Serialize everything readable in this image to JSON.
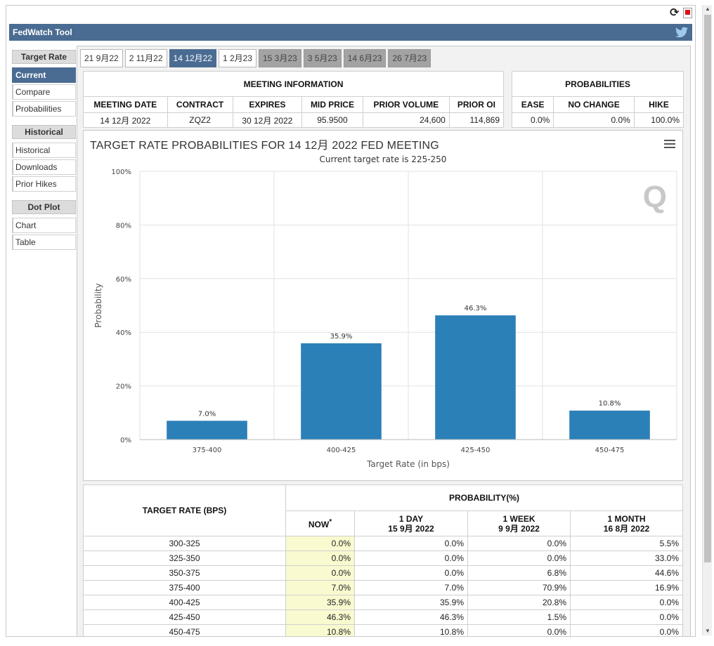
{
  "app": {
    "title": "FedWatch Tool"
  },
  "sidebar": {
    "sections": [
      {
        "heading": "Target Rate",
        "items": [
          "Current",
          "Compare",
          "Probabilities"
        ]
      },
      {
        "heading": "Historical",
        "items": [
          "Historical",
          "Downloads",
          "Prior Hikes"
        ]
      },
      {
        "heading": "Dot Plot",
        "items": [
          "Chart",
          "Table"
        ]
      }
    ],
    "active_item": "Current"
  },
  "tabs": [
    {
      "label": "21 9月22",
      "state": "normal"
    },
    {
      "label": "2 11月22",
      "state": "normal"
    },
    {
      "label": "14 12月22",
      "state": "active"
    },
    {
      "label": "1 2月23",
      "state": "normal"
    },
    {
      "label": "15 3月23",
      "state": "disabled"
    },
    {
      "label": "3 5月23",
      "state": "disabled"
    },
    {
      "label": "14 6月23",
      "state": "disabled"
    },
    {
      "label": "26 7月23",
      "state": "disabled"
    }
  ],
  "meeting_info": {
    "heading": "MEETING INFORMATION",
    "columns": [
      "MEETING DATE",
      "CONTRACT",
      "EXPIRES",
      "MID PRICE",
      "PRIOR VOLUME",
      "PRIOR OI"
    ],
    "values": [
      "14 12月 2022",
      "ZQZ2",
      "30 12月 2022",
      "95.9500",
      "24,600",
      "114,869"
    ]
  },
  "probabilities": {
    "heading": "PROBABILITIES",
    "columns": [
      "EASE",
      "NO CHANGE",
      "HIKE"
    ],
    "values": [
      "0.0%",
      "0.0%",
      "100.0%"
    ]
  },
  "chart": {
    "title": "TARGET RATE PROBABILITIES FOR 14 12月 2022 FED MEETING",
    "subtitle": "Current target rate is 225-250",
    "logo_text": "Q"
  },
  "chart_data": {
    "type": "bar",
    "categories": [
      "375-400",
      "400-425",
      "425-450",
      "450-475"
    ],
    "values": [
      7.0,
      35.9,
      46.3,
      10.8
    ],
    "data_labels": [
      "7.0%",
      "35.9%",
      "46.3%",
      "10.8%"
    ],
    "title": "TARGET RATE PROBABILITIES FOR 14 12月 2022 FED MEETING",
    "subtitle": "Current target rate is 225-250",
    "xlabel": "Target Rate (in bps)",
    "ylabel": "Probability",
    "ylim": [
      0,
      100
    ],
    "yticks": [
      0,
      20,
      40,
      60,
      80,
      100
    ],
    "ytick_labels": [
      "0%",
      "20%",
      "40%",
      "60%",
      "80%",
      "100%"
    ],
    "grid": true,
    "color": "#2b80b8"
  },
  "rate_table": {
    "heading_rate": "TARGET RATE (BPS)",
    "heading_prob": "PROBABILITY(%)",
    "columns": [
      {
        "line1": "NOW",
        "line2": "",
        "note": "*"
      },
      {
        "line1": "1 DAY",
        "line2": "15 9月 2022",
        "note": ""
      },
      {
        "line1": "1 WEEK",
        "line2": "9 9月 2022",
        "note": ""
      },
      {
        "line1": "1 MONTH",
        "line2": "16 8月 2022",
        "note": ""
      }
    ],
    "rows": [
      {
        "rate": "300-325",
        "values": [
          "0.0%",
          "0.0%",
          "0.0%",
          "5.5%"
        ]
      },
      {
        "rate": "325-350",
        "values": [
          "0.0%",
          "0.0%",
          "0.0%",
          "33.0%"
        ]
      },
      {
        "rate": "350-375",
        "values": [
          "0.0%",
          "0.0%",
          "6.8%",
          "44.6%"
        ]
      },
      {
        "rate": "375-400",
        "values": [
          "7.0%",
          "7.0%",
          "70.9%",
          "16.9%"
        ]
      },
      {
        "rate": "400-425",
        "values": [
          "35.9%",
          "35.9%",
          "20.8%",
          "0.0%"
        ]
      },
      {
        "rate": "425-450",
        "values": [
          "46.3%",
          "46.3%",
          "1.5%",
          "0.0%"
        ]
      },
      {
        "rate": "450-475",
        "values": [
          "10.8%",
          "10.8%",
          "0.0%",
          "0.0%"
        ]
      }
    ]
  },
  "colors": {
    "header_blue": "#4a6c92",
    "bar_blue": "#2b80b8",
    "now_highlight": "#fafad0"
  }
}
